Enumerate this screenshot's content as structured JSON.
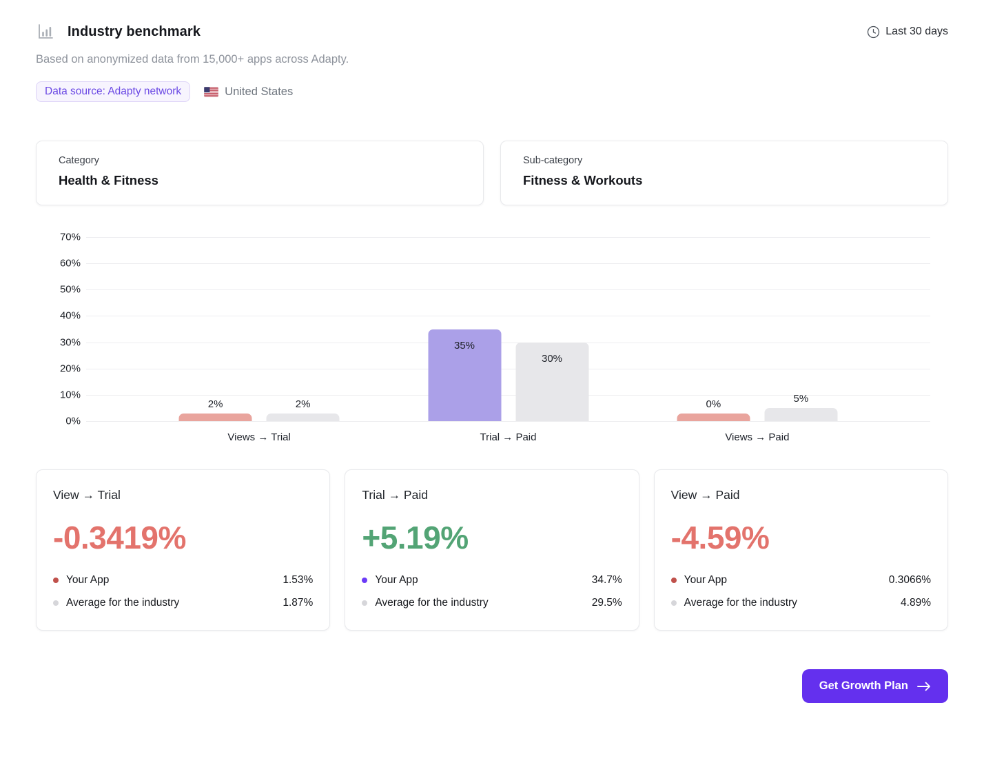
{
  "header": {
    "title": "Industry benchmark",
    "subtitle": "Based on anonymized data from 15,000+ apps across Adapty.",
    "time_range": "Last 30 days",
    "data_source_badge": "Data source: Adapty network",
    "country": "United States"
  },
  "filters": {
    "category": {
      "label": "Category",
      "value": "Health & Fitness"
    },
    "subcategory": {
      "label": "Sub-category",
      "value": "Fitness & Workouts"
    }
  },
  "chart_data": {
    "type": "bar",
    "title": "",
    "categories": [
      "Views → Trial",
      "Trial → Paid",
      "Views → Paid"
    ],
    "series": [
      {
        "name": "Your App",
        "values": [
          2,
          35,
          0
        ],
        "value_labels": [
          "2%",
          "35%",
          "0%"
        ],
        "bar_colors": [
          "#E9A49D",
          "#ABA0E8",
          "#E9A49D"
        ]
      },
      {
        "name": "Average for the industry",
        "values": [
          2,
          30,
          5
        ],
        "value_labels": [
          "2%",
          "30%",
          "5%"
        ],
        "bar_colors": [
          "#E7E7EA",
          "#E7E7EA",
          "#E7E7EA"
        ]
      }
    ],
    "ylim": [
      0,
      70
    ],
    "yticks": [
      "70%",
      "60%",
      "50%",
      "40%",
      "30%",
      "20%",
      "10%",
      "0%"
    ],
    "grid": true,
    "legend_position": "none"
  },
  "cards": [
    {
      "title": "View → Trial",
      "delta": "-0.3419%",
      "delta_color": "#E3736C",
      "rows": [
        {
          "dot": "#C0514B",
          "label": "Your App",
          "value": "1.53%"
        },
        {
          "dot": "#D6D6DA",
          "label": "Average for the industry",
          "value": "1.87%"
        }
      ]
    },
    {
      "title": "Trial → Paid",
      "delta": "+5.19%",
      "delta_color": "#53A475",
      "rows": [
        {
          "dot": "#6B3BF7",
          "label": "Your App",
          "value": "34.7%"
        },
        {
          "dot": "#D6D6DA",
          "label": "Average for the industry",
          "value": "29.5%"
        }
      ]
    },
    {
      "title": "View → Paid",
      "delta": "-4.59%",
      "delta_color": "#E3736C",
      "rows": [
        {
          "dot": "#C0514B",
          "label": "Your App",
          "value": "0.3066%"
        },
        {
          "dot": "#D6D6DA",
          "label": "Average for the industry",
          "value": "4.89%"
        }
      ]
    }
  ],
  "cta": {
    "label": "Get Growth Plan"
  },
  "colors": {
    "accent": "#6430EE",
    "badge_text": "#6A48E4",
    "negative": "#E3736C",
    "positive": "#53A475",
    "your_app_bar": "#E9A49D",
    "your_app_bar_highlight": "#ABA0E8",
    "industry_bar": "#E7E7EA"
  }
}
